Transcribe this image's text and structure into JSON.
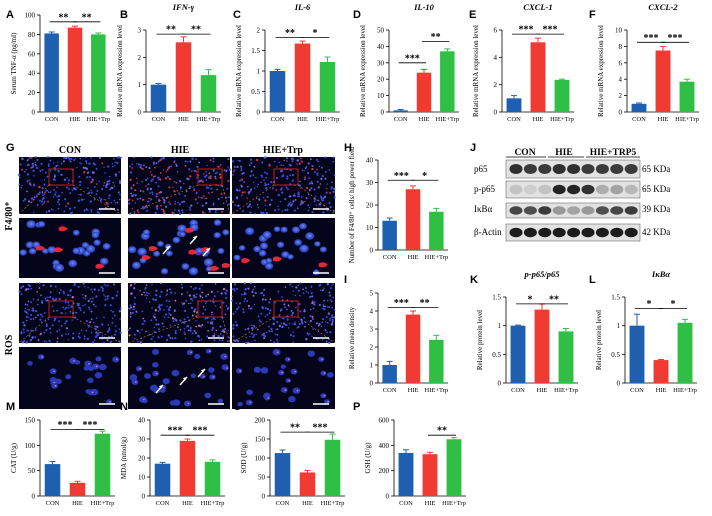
{
  "figure": {
    "panel_letters": [
      "A",
      "B",
      "C",
      "D",
      "E",
      "F",
      "G",
      "H",
      "I",
      "J",
      "K",
      "L",
      "M",
      "N",
      "O",
      "P"
    ],
    "colors": {
      "CON": "#1f5fb0",
      "HIE": "#f03a32",
      "HIE+Trp": "#2fbf45"
    }
  },
  "microscopy": {
    "columns": [
      "CON",
      "HIE",
      "HIE+Trp"
    ],
    "rows": [
      "F4/80⁺",
      "ROS"
    ]
  },
  "western_blot": {
    "groups": [
      "CON",
      "HIE",
      "HIE+TRP5"
    ],
    "rows": [
      {
        "protein": "p65",
        "size": "65 KDa"
      },
      {
        "protein": "p-p65",
        "size": "65 KDa"
      },
      {
        "protein": "IκBα",
        "size": "39 KDa"
      },
      {
        "protein": "β-Actin",
        "size": "42 KDa"
      }
    ]
  },
  "chart_data": [
    {
      "panel": "A",
      "type": "bar",
      "title": "",
      "ylabel": "Serum TNF-α  (pg/ml)",
      "categories": [
        "CON",
        "HIE",
        "HIE+Trp"
      ],
      "values": [
        81,
        87,
        80
      ],
      "errors": [
        1.5,
        1.5,
        1.5
      ],
      "ylim": [
        0,
        100
      ],
      "yticks": [
        0,
        20,
        40,
        60,
        80,
        100
      ],
      "sig": [
        {
          "a": 0,
          "b": 1,
          "label": "**",
          "y": 93
        },
        {
          "a": 1,
          "b": 2,
          "label": "**",
          "y": 93
        }
      ]
    },
    {
      "panel": "B",
      "type": "bar",
      "title": "IFN-γ",
      "ylabel": "Relative mRNA expression level",
      "categories": [
        "CON",
        "HIE",
        "HIE+Trp"
      ],
      "values": [
        1.0,
        2.55,
        1.35
      ],
      "errors": [
        0.04,
        0.2,
        0.2
      ],
      "ylim": [
        0,
        3
      ],
      "yticks": [
        0,
        1,
        2,
        3
      ],
      "sig": [
        {
          "a": 0,
          "b": 1,
          "label": "**",
          "y": 2.85
        },
        {
          "a": 1,
          "b": 2,
          "label": "**",
          "y": 2.85
        }
      ]
    },
    {
      "panel": "C",
      "type": "bar",
      "title": "IL-6",
      "ylabel": "Relative mRNA expression level",
      "categories": [
        "CON",
        "HIE",
        "HIE+Trp"
      ],
      "values": [
        1.0,
        1.67,
        1.22
      ],
      "errors": [
        0.04,
        0.06,
        0.12
      ],
      "ylim": [
        0,
        2.0
      ],
      "yticks": [
        0,
        0.5,
        1.0,
        1.5,
        2.0
      ],
      "sig": [
        {
          "a": 0,
          "b": 1,
          "label": "**",
          "y": 1.82
        },
        {
          "a": 1,
          "b": 2,
          "label": "*",
          "y": 1.82
        }
      ]
    },
    {
      "panel": "D",
      "type": "bar",
      "title": "IL-10",
      "ylabel": "Relative mRNA expression level",
      "categories": [
        "CON",
        "HIE",
        "HIE+Trp"
      ],
      "values": [
        1,
        24,
        37
      ],
      "errors": [
        0.5,
        2,
        1.5
      ],
      "ylim": [
        0,
        50
      ],
      "yticks": [
        0,
        10,
        20,
        30,
        40,
        50
      ],
      "sig": [
        {
          "a": 0,
          "b": 1,
          "label": "***",
          "y": 30
        },
        {
          "a": 1,
          "b": 2,
          "label": "**",
          "y": 43
        }
      ]
    },
    {
      "panel": "E",
      "type": "bar",
      "title": "CXCL-1",
      "ylabel": "Relative mRNA expression level",
      "categories": [
        "CON",
        "HIE",
        "HIE+Trp"
      ],
      "values": [
        1.0,
        5.1,
        2.35
      ],
      "errors": [
        0.2,
        0.3,
        0.05
      ],
      "ylim": [
        0,
        6
      ],
      "yticks": [
        0,
        2,
        4,
        6
      ],
      "sig": [
        {
          "a": 0,
          "b": 1,
          "label": "***",
          "y": 5.7
        },
        {
          "a": 1,
          "b": 2,
          "label": "***",
          "y": 5.7
        }
      ]
    },
    {
      "panel": "F",
      "type": "bar",
      "title": "CXCL-2",
      "ylabel": "Relative mRNA expression level",
      "categories": [
        "CON",
        "HIE",
        "HIE+Trp"
      ],
      "values": [
        1.0,
        7.5,
        3.7
      ],
      "errors": [
        0.1,
        0.5,
        0.3
      ],
      "ylim": [
        0,
        10
      ],
      "yticks": [
        0,
        2,
        4,
        6,
        8,
        10
      ],
      "sig": [
        {
          "a": 0,
          "b": 1,
          "label": "***",
          "y": 8.5
        },
        {
          "a": 1,
          "b": 2,
          "label": "***",
          "y": 8.5
        }
      ]
    },
    {
      "panel": "H",
      "type": "bar",
      "title": "",
      "ylabel": "Number of F4/80⁺ cells/ high power field",
      "categories": [
        "CON",
        "HIE",
        "HIE+Trp"
      ],
      "values": [
        13,
        27,
        17
      ],
      "errors": [
        1.2,
        1.5,
        1.5
      ],
      "ylim": [
        0,
        40
      ],
      "yticks": [
        0,
        10,
        20,
        30,
        40
      ],
      "sig": [
        {
          "a": 0,
          "b": 1,
          "label": "***",
          "y": 31
        },
        {
          "a": 1,
          "b": 2,
          "label": "*",
          "y": 31
        }
      ]
    },
    {
      "panel": "I",
      "type": "bar",
      "title": "",
      "ylabel": "Relative mean density",
      "categories": [
        "CON",
        "HIE",
        "HIE+Trp"
      ],
      "values": [
        1.0,
        3.8,
        2.4
      ],
      "errors": [
        0.2,
        0.2,
        0.25
      ],
      "ylim": [
        0,
        5
      ],
      "yticks": [
        0,
        1,
        2,
        3,
        4,
        5
      ],
      "sig": [
        {
          "a": 0,
          "b": 1,
          "label": "***",
          "y": 4.2
        },
        {
          "a": 1,
          "b": 2,
          "label": "**",
          "y": 4.2
        }
      ]
    },
    {
      "panel": "K",
      "type": "bar",
      "title": "p-p65/p65",
      "ylabel": "Relative protein level",
      "categories": [
        "CON",
        "HIE",
        "HIE+Trp"
      ],
      "values": [
        1.0,
        1.28,
        0.9
      ],
      "errors": [
        0.01,
        0.1,
        0.05
      ],
      "ylim": [
        0,
        1.5
      ],
      "yticks": [
        0,
        0.5,
        1.0,
        1.5
      ],
      "sig": [
        {
          "a": 0,
          "b": 1,
          "label": "*",
          "y": 1.38
        },
        {
          "a": 1,
          "b": 2,
          "label": "**",
          "y": 1.38
        }
      ]
    },
    {
      "panel": "L",
      "type": "bar",
      "title": "IκBα",
      "ylabel": "Relative protein level",
      "categories": [
        "CON",
        "HIE",
        "HIE+Trp"
      ],
      "values": [
        1.0,
        0.4,
        1.05
      ],
      "errors": [
        0.2,
        0.01,
        0.06
      ],
      "ylim": [
        0,
        1.5
      ],
      "yticks": [
        0,
        0.5,
        1.0,
        1.5
      ],
      "sig": [
        {
          "a": 0,
          "b": 1,
          "label": "*",
          "y": 1.3
        },
        {
          "a": 1,
          "b": 2,
          "label": "*",
          "y": 1.3
        }
      ]
    },
    {
      "panel": "M",
      "type": "bar",
      "title": "",
      "ylabel": "CAT (U/g)",
      "categories": [
        "CON",
        "HIE",
        "HIE+Trp"
      ],
      "values": [
        63,
        26,
        123
      ],
      "errors": [
        5,
        3,
        5
      ],
      "ylim": [
        0,
        150
      ],
      "yticks": [
        0,
        50,
        100,
        150
      ],
      "sig": [
        {
          "a": 0,
          "b": 1,
          "label": "***",
          "y": 131
        },
        {
          "a": 1,
          "b": 2,
          "label": "***",
          "y": 131
        }
      ]
    },
    {
      "panel": "N",
      "type": "bar",
      "title": "",
      "ylabel": "MDA (nmol/g)",
      "categories": [
        "CON",
        "HIE",
        "HIE+Trp"
      ],
      "values": [
        17,
        29,
        18
      ],
      "errors": [
        0.7,
        1,
        1
      ],
      "ylim": [
        0,
        40
      ],
      "yticks": [
        0,
        10,
        20,
        30,
        40
      ],
      "sig": [
        {
          "a": 0,
          "b": 1,
          "label": "***",
          "y": 32
        },
        {
          "a": 1,
          "b": 2,
          "label": "***",
          "y": 32
        }
      ]
    },
    {
      "panel": "O",
      "type": "bar",
      "title": "",
      "ylabel": "SOD (U/g)",
      "categories": [
        "CON",
        "HIE",
        "HIE+Trp"
      ],
      "values": [
        113,
        62,
        148
      ],
      "errors": [
        8,
        5,
        15
      ],
      "ylim": [
        0,
        200
      ],
      "yticks": [
        0,
        50,
        100,
        150,
        200
      ],
      "sig": [
        {
          "a": 0,
          "b": 1,
          "label": "**",
          "y": 168
        },
        {
          "a": 1,
          "b": 2,
          "label": "***",
          "y": 168
        }
      ]
    },
    {
      "panel": "P",
      "type": "bar",
      "title": "",
      "ylabel": "GSH (U/g)",
      "categories": [
        "CON",
        "HIE",
        "HIE+Trp"
      ],
      "values": [
        340,
        330,
        448
      ],
      "errors": [
        25,
        15,
        12
      ],
      "ylim": [
        0,
        600
      ],
      "yticks": [
        0,
        200,
        400,
        600
      ],
      "sig": [
        {
          "a": 1,
          "b": 2,
          "label": "**",
          "y": 480
        }
      ]
    }
  ]
}
